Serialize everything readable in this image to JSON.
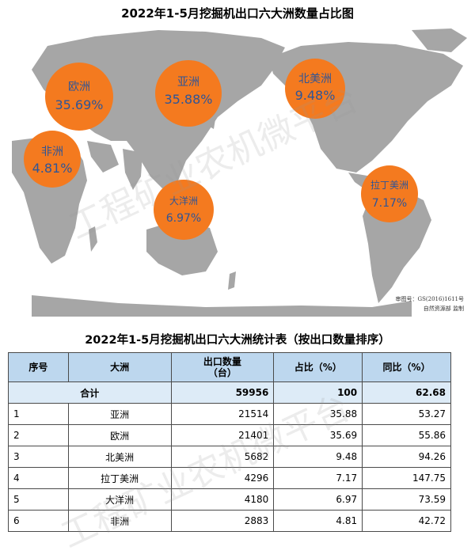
{
  "map_title": "2022年1-5月挖掘机出口六大洲数量占比图",
  "map_credit": [
    "审图号：GS(2016)1611号",
    "自然资源部 监制"
  ],
  "watermark": "工程矿业农机微平台",
  "colors": {
    "bubble": "#f47a1f",
    "bubble_text": "#2f5597",
    "land": "#a6a6a6",
    "ocean": "#ffffff",
    "header": "#bdd7ee",
    "total_row": "#ddebf7"
  },
  "bubbles": [
    {
      "name": "欧洲",
      "value": "35.69%"
    },
    {
      "name": "亚洲",
      "value": "35.88%"
    },
    {
      "name": "北美洲",
      "value": "9.48%"
    },
    {
      "name": "非洲",
      "value": "4.81%"
    },
    {
      "name": "大洋洲",
      "value": "6.97%"
    },
    {
      "name": "拉丁美洲",
      "value": "7.17%"
    }
  ],
  "table_title": "2022年1-5月挖掘机出口六大洲统计表（按出口数量排序）",
  "table": {
    "headers": {
      "rank": "序号",
      "continent": "大洲",
      "qty_line1": "出口数量",
      "qty_line2": "（台）",
      "share": "占比（%）",
      "yoy": "同比（%）"
    },
    "total": {
      "label": "合计",
      "qty": "59956",
      "share": "100",
      "yoy": "62.68"
    },
    "rows": [
      {
        "rank": "1",
        "continent": "亚洲",
        "qty": "21514",
        "share": "35.88",
        "yoy": "53.27"
      },
      {
        "rank": "2",
        "continent": "欧洲",
        "qty": "21401",
        "share": "35.69",
        "yoy": "55.86"
      },
      {
        "rank": "3",
        "continent": "北美洲",
        "qty": "5682",
        "share": "9.48",
        "yoy": "94.26"
      },
      {
        "rank": "4",
        "continent": "拉丁美洲",
        "qty": "4296",
        "share": "7.17",
        "yoy": "147.75"
      },
      {
        "rank": "5",
        "continent": "大洋洲",
        "qty": "4180",
        "share": "6.97",
        "yoy": "73.59"
      },
      {
        "rank": "6",
        "continent": "非洲",
        "qty": "2883",
        "share": "4.81",
        "yoy": "42.72"
      }
    ]
  },
  "chart_data": {
    "type": "table",
    "title": "2022年1-5月挖掘机出口六大洲统计表（按出口数量排序）",
    "categories": [
      "亚洲",
      "欧洲",
      "北美洲",
      "拉丁美洲",
      "大洋洲",
      "非洲"
    ],
    "series": [
      {
        "name": "出口数量（台）",
        "values": [
          21514,
          21401,
          5682,
          4296,
          4180,
          2883
        ]
      },
      {
        "name": "占比（%）",
        "values": [
          35.88,
          35.69,
          9.48,
          7.17,
          6.97,
          4.81
        ]
      },
      {
        "name": "同比（%）",
        "values": [
          53.27,
          55.86,
          94.26,
          147.75,
          73.59,
          42.72
        ]
      }
    ],
    "total": {
      "qty": 59956,
      "share": 100,
      "yoy": 62.68
    }
  }
}
